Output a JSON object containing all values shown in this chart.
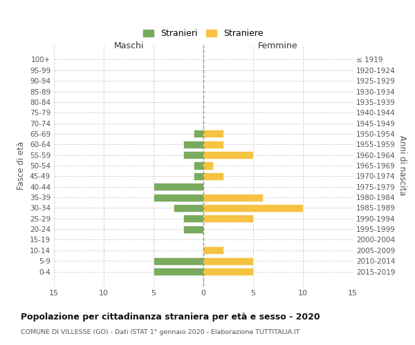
{
  "age_groups": [
    "100+",
    "95-99",
    "90-94",
    "85-89",
    "80-84",
    "75-79",
    "70-74",
    "65-69",
    "60-64",
    "55-59",
    "50-54",
    "45-49",
    "40-44",
    "35-39",
    "30-34",
    "25-29",
    "20-24",
    "15-19",
    "10-14",
    "5-9",
    "0-4"
  ],
  "birth_years": [
    "≤ 1919",
    "1920-1924",
    "1925-1929",
    "1930-1934",
    "1935-1939",
    "1940-1944",
    "1945-1949",
    "1950-1954",
    "1955-1959",
    "1960-1964",
    "1965-1969",
    "1970-1974",
    "1975-1979",
    "1980-1984",
    "1985-1989",
    "1990-1994",
    "1995-1999",
    "2000-2004",
    "2005-2009",
    "2010-2014",
    "2015-2019"
  ],
  "males": [
    0,
    0,
    0,
    0,
    0,
    0,
    0,
    1,
    2,
    2,
    1,
    1,
    5,
    5,
    3,
    2,
    2,
    0,
    0,
    5,
    5
  ],
  "females": [
    0,
    0,
    0,
    0,
    0,
    0,
    0,
    2,
    2,
    5,
    1,
    2,
    0,
    6,
    10,
    5,
    0,
    0,
    2,
    5,
    5
  ],
  "male_color": "#7aaa5e",
  "female_color": "#f5c242",
  "grid_color": "#cccccc",
  "title": "Popolazione per cittadinanza straniera per età e sesso - 2020",
  "subtitle": "COMUNE DI VILLESSE (GO) - Dati ISTAT 1° gennaio 2020 - Elaborazione TUTTITALIA.IT",
  "xlabel_left": "Maschi",
  "xlabel_right": "Femmine",
  "ylabel_left": "Fasce di età",
  "ylabel_right": "Anni di nascita",
  "legend_male": "Stranieri",
  "legend_female": "Straniere",
  "xlim": 15
}
